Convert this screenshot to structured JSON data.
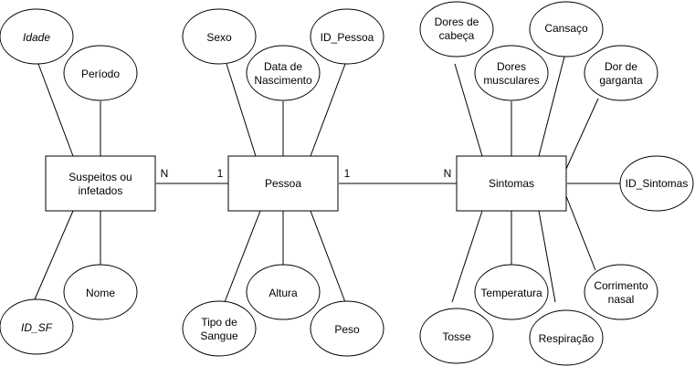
{
  "entities": {
    "suspeitos": [
      "Suspeitos ou",
      "infetados"
    ],
    "pessoa": [
      "Pessoa"
    ],
    "sintomas": [
      "Sintomas"
    ]
  },
  "attributes": {
    "idade": [
      "Idade"
    ],
    "periodo": [
      "Período"
    ],
    "nome": [
      "Nome"
    ],
    "id_sf": [
      "ID_SF"
    ],
    "sexo": [
      "Sexo"
    ],
    "data_nascimento": [
      "Data de",
      "Nascimento"
    ],
    "id_pessoa": [
      "ID_Pessoa"
    ],
    "tipo_sangue": [
      "Tipo de",
      "Sangue"
    ],
    "altura": [
      "Altura"
    ],
    "peso": [
      "Peso"
    ],
    "dores_cabeca": [
      "Dores de",
      "cabeça"
    ],
    "dores_musculares": [
      "Dores",
      "musculares"
    ],
    "cansaco": [
      "Cansaço"
    ],
    "dor_garganta": [
      "Dor de",
      "garganta"
    ],
    "id_sintomas": [
      "ID_Sintomas"
    ],
    "corrimento_nasal": [
      "Corrimento",
      "nasal"
    ],
    "respiracao": [
      "Respiração"
    ],
    "temperatura": [
      "Temperatura"
    ],
    "tosse": [
      "Tosse"
    ]
  },
  "cardinalities": {
    "suspeitos_side": "N",
    "pessoa_left": "1",
    "pessoa_right": "1",
    "sintomas_side": "N"
  }
}
